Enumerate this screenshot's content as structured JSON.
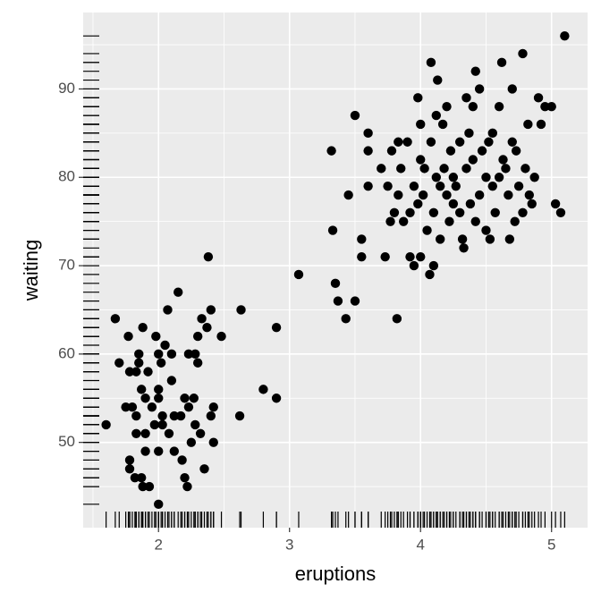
{
  "chart_data": {
    "type": "scatter",
    "x_label": "eruptions",
    "y_label": "waiting",
    "color": "#000000",
    "rug": true,
    "grid": true,
    "xlim": [
      1.425,
      5.275
    ],
    "xticks": [
      2,
      3,
      4,
      5
    ],
    "x_minor_ticks": [
      1.5,
      2.5,
      3.5,
      4.5
    ],
    "ylim": [
      40.35,
      98.65
    ],
    "yticks": [
      50,
      60,
      70,
      80,
      90
    ],
    "y_minor_ticks": [
      45,
      55,
      65,
      75,
      85,
      95
    ],
    "x": [
      1.6,
      1.67,
      1.7,
      1.75,
      1.77,
      1.78,
      1.78,
      1.78,
      1.8,
      1.82,
      1.83,
      1.83,
      1.83,
      1.85,
      1.85,
      1.87,
      1.87,
      1.88,
      1.88,
      1.9,
      1.9,
      1.9,
      1.92,
      1.93,
      1.95,
      1.97,
      1.98,
      2.0,
      2.0,
      2.0,
      2.0,
      2.0,
      2.02,
      2.03,
      2.03,
      2.05,
      2.07,
      2.08,
      2.1,
      2.1,
      2.12,
      2.12,
      2.15,
      2.17,
      2.18,
      2.2,
      2.2,
      2.22,
      2.23,
      2.23,
      2.25,
      2.27,
      2.28,
      2.28,
      2.3,
      2.3,
      2.32,
      2.33,
      2.35,
      2.37,
      2.38,
      2.4,
      2.4,
      2.42,
      2.42,
      2.48,
      2.62,
      2.63,
      2.8,
      2.9,
      2.9,
      3.07,
      3.32,
      3.33,
      3.35,
      3.37,
      3.43,
      3.45,
      3.5,
      3.5,
      3.55,
      3.55,
      3.6,
      3.6,
      3.6,
      3.7,
      3.73,
      3.75,
      3.77,
      3.78,
      3.8,
      3.82,
      3.83,
      3.83,
      3.85,
      3.87,
      3.9,
      3.92,
      3.92,
      3.95,
      3.95,
      3.98,
      3.98,
      4.0,
      4.0,
      4.0,
      4.02,
      4.03,
      4.05,
      4.07,
      4.08,
      4.08,
      4.1,
      4.1,
      4.12,
      4.12,
      4.13,
      4.15,
      4.15,
      4.17,
      4.18,
      4.2,
      4.2,
      4.22,
      4.23,
      4.25,
      4.25,
      4.27,
      4.3,
      4.3,
      4.32,
      4.33,
      4.35,
      4.35,
      4.37,
      4.38,
      4.4,
      4.4,
      4.42,
      4.42,
      4.45,
      4.45,
      4.47,
      4.5,
      4.5,
      4.52,
      4.53,
      4.55,
      4.55,
      4.57,
      4.6,
      4.6,
      4.62,
      4.63,
      4.65,
      4.67,
      4.68,
      4.7,
      4.7,
      4.72,
      4.73,
      4.75,
      4.78,
      4.78,
      4.8,
      4.82,
      4.83,
      4.85,
      4.87,
      4.9,
      4.92,
      4.95,
      5.0,
      5.03,
      5.07,
      5.1
    ],
    "values": [
      52,
      64,
      59,
      54,
      62,
      58,
      48,
      47,
      54,
      46,
      53,
      51,
      58,
      60,
      59,
      46,
      56,
      63,
      45,
      55,
      51,
      49,
      58,
      45,
      54,
      52,
      62,
      56,
      55,
      49,
      60,
      43,
      59,
      52,
      53,
      61,
      65,
      51,
      57,
      60,
      53,
      49,
      67,
      53,
      48,
      55,
      46,
      45,
      60,
      54,
      50,
      55,
      60,
      52,
      62,
      59,
      51,
      64,
      47,
      63,
      71,
      65,
      53,
      50,
      54,
      62,
      53,
      65,
      56,
      55,
      63,
      69,
      83,
      74,
      68,
      66,
      64,
      78,
      66,
      87,
      71,
      73,
      79,
      83,
      85,
      81,
      71,
      79,
      75,
      83,
      76,
      64,
      78,
      84,
      81,
      75,
      84,
      76,
      71,
      70,
      79,
      77,
      89,
      86,
      82,
      71,
      78,
      81,
      74,
      69,
      93,
      84,
      76,
      70,
      87,
      80,
      91,
      79,
      73,
      86,
      81,
      78,
      88,
      75,
      83,
      80,
      77,
      79,
      76,
      84,
      73,
      72,
      81,
      89,
      85,
      77,
      88,
      82,
      92,
      75,
      90,
      78,
      83,
      80,
      74,
      84,
      73,
      85,
      79,
      76,
      80,
      88,
      93,
      82,
      81,
      78,
      73,
      90,
      84,
      75,
      83,
      79,
      94,
      76,
      81,
      86,
      78,
      77,
      80,
      89,
      86,
      88,
      88,
      77,
      76,
      96
    ]
  }
}
